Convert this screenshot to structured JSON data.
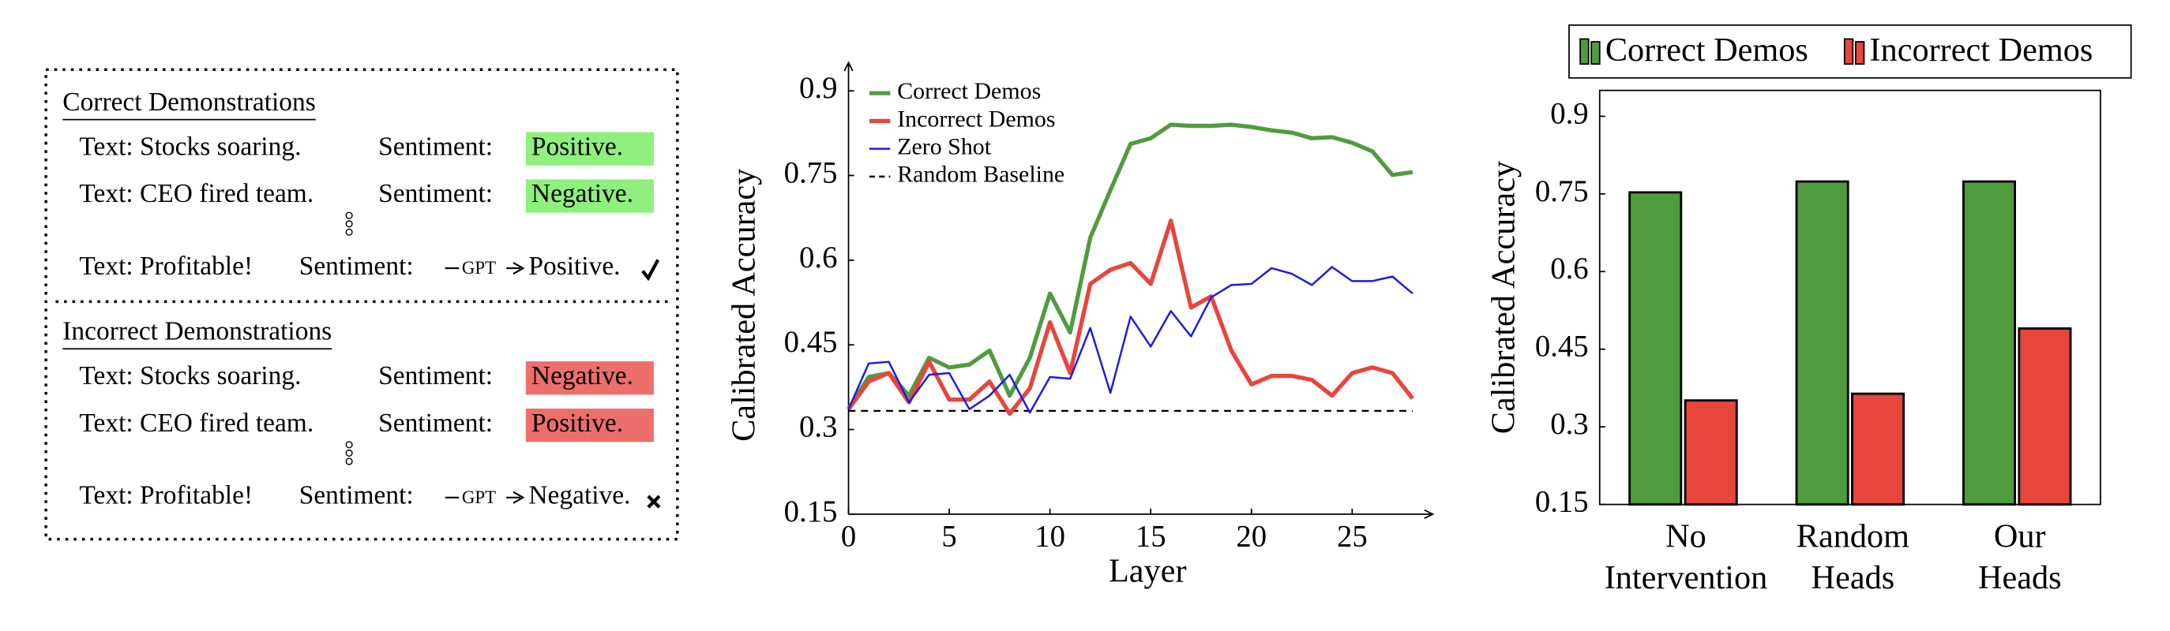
{
  "diagram": {
    "correct": {
      "title": "Correct Demonstrations",
      "examples": [
        {
          "text": "Text: Stocks soaring.",
          "prompt": "Sentiment:",
          "label": "Positive."
        },
        {
          "text": "Text: CEO fired team.",
          "prompt": "Sentiment:",
          "label": "Negative."
        }
      ],
      "query": {
        "text": "Text: Profitable!",
        "prompt": "Sentiment:",
        "model": "GPT",
        "output": "Positive."
      }
    },
    "incorrect": {
      "title": "Incorrect Demonstrations",
      "examples": [
        {
          "text": "Text: Stocks soaring.",
          "prompt": "Sentiment:",
          "label": "Negative."
        },
        {
          "text": "Text: CEO fired team.",
          "prompt": "Sentiment:",
          "label": "Positive."
        }
      ],
      "query": {
        "text": "Text: Profitable!",
        "prompt": "Sentiment:",
        "model": "GPT",
        "output": "Negative."
      }
    }
  },
  "chart_data": [
    {
      "type": "line",
      "x_label": "Layer",
      "y_label": "Calibrated Accuracy",
      "x": [
        0,
        1,
        2,
        3,
        4,
        5,
        6,
        7,
        8,
        9,
        10,
        11,
        12,
        13,
        14,
        15,
        16,
        17,
        18,
        19,
        20,
        21,
        22,
        23,
        24,
        25,
        26,
        27,
        28
      ],
      "xlim": [
        0,
        29
      ],
      "xticks": [
        0,
        5,
        10,
        15,
        20,
        25
      ],
      "ylim": [
        0.15,
        0.95
      ],
      "yticks": [
        0.15,
        0.3,
        0.45,
        0.6,
        0.75,
        0.9
      ],
      "legend": "upper left",
      "series": [
        {
          "name": "Correct Demos",
          "color": "#519b3f",
          "width": 3,
          "values": [
            0.336,
            0.393,
            0.4,
            0.36,
            0.427,
            0.41,
            0.415,
            0.44,
            0.36,
            0.427,
            0.541,
            0.472,
            0.64,
            0.724,
            0.806,
            0.816,
            0.84,
            0.838,
            0.838,
            0.84,
            0.836,
            0.83,
            0.826,
            0.816,
            0.818,
            0.808,
            0.793,
            0.751,
            0.756
          ]
        },
        {
          "name": "Incorrect Demos",
          "color": "#e8453c",
          "width": 3,
          "values": [
            0.336,
            0.385,
            0.4,
            0.348,
            0.42,
            0.353,
            0.353,
            0.385,
            0.328,
            0.373,
            0.49,
            0.4,
            0.558,
            0.583,
            0.595,
            0.558,
            0.67,
            0.516,
            0.536,
            0.44,
            0.38,
            0.395,
            0.395,
            0.388,
            0.36,
            0.4,
            0.41,
            0.4,
            0.355
          ]
        },
        {
          "name": "Zero Shot",
          "color": "#1a1aee",
          "width": 1.4,
          "values": [
            0.336,
            0.417,
            0.42,
            0.348,
            0.397,
            0.4,
            0.336,
            0.36,
            0.397,
            0.33,
            0.393,
            0.39,
            0.48,
            0.365,
            0.5,
            0.447,
            0.51,
            0.465,
            0.534,
            0.556,
            0.558,
            0.586,
            0.576,
            0.556,
            0.588,
            0.563,
            0.563,
            0.571,
            0.541
          ]
        }
      ],
      "hlines": [
        {
          "name": "Random Baseline",
          "value": 0.333,
          "color": "#000000",
          "dash": true
        }
      ]
    },
    {
      "type": "bar",
      "y_label": "Calibrated Accuracy",
      "categories": [
        [
          "No",
          "Intervention"
        ],
        [
          "Random",
          "Heads"
        ],
        [
          "Our",
          "Heads"
        ]
      ],
      "ylim": [
        0.15,
        0.95
      ],
      "yticks": [
        0.15,
        0.3,
        0.45,
        0.6,
        0.75,
        0.9
      ],
      "legend": "top",
      "series": [
        {
          "name": "Correct Demos",
          "color": "#519b3f",
          "values": [
            0.753,
            0.774,
            0.774
          ]
        },
        {
          "name": "Incorrect Demos",
          "color": "#e8453c",
          "values": [
            0.351,
            0.364,
            0.49
          ]
        }
      ]
    }
  ]
}
